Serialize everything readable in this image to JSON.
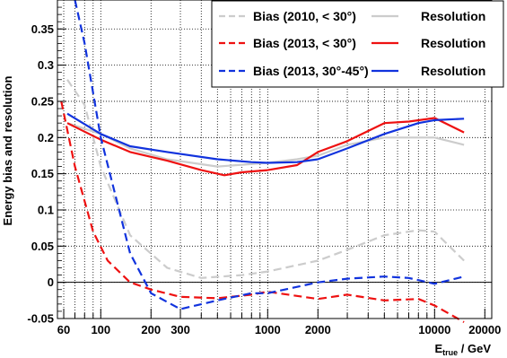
{
  "chart_data": {
    "type": "line",
    "xscale": "log",
    "xlim": [
      55,
      22000
    ],
    "ylim": [
      -0.05,
      0.39
    ],
    "grid": true,
    "legend_position": "top-right",
    "ylabel": "Energy bias and resolution",
    "xlabel_main": "E",
    "xlabel_sub": "true",
    "xlabel_unit": " / GeV",
    "x_ticks": [
      {
        "value": 60,
        "label": "60"
      },
      {
        "value": 100,
        "label": "100"
      },
      {
        "value": 200,
        "label": "200"
      },
      {
        "value": 300,
        "label": "300"
      },
      {
        "value": 1000,
        "label": "1000"
      },
      {
        "value": 2000,
        "label": "2000"
      },
      {
        "value": 10000,
        "label": "10000"
      },
      {
        "value": 20000,
        "label": "20000"
      }
    ],
    "x_minor_ticks": [
      70,
      80,
      90,
      400,
      500,
      600,
      700,
      800,
      900,
      3000,
      4000,
      5000,
      6000,
      7000,
      8000,
      9000
    ],
    "y_ticks": [
      {
        "value": -0.05,
        "label": "-0.05"
      },
      {
        "value": 0,
        "label": "0"
      },
      {
        "value": 0.05,
        "label": "0.05"
      },
      {
        "value": 0.1,
        "label": "0.1"
      },
      {
        "value": 0.15,
        "label": "0.15"
      },
      {
        "value": 0.2,
        "label": "0.2"
      },
      {
        "value": 0.25,
        "label": "0.25"
      },
      {
        "value": 0.3,
        "label": "0.3"
      },
      {
        "value": 0.35,
        "label": "0.35"
      }
    ],
    "series": [
      {
        "name": "Bias (2010, < 30°)",
        "color": "#cccccc",
        "dash": "dashed",
        "x": [
          63,
          80,
          100,
          150,
          250,
          400,
          700,
          1000,
          2000,
          3000,
          5000,
          8000,
          10000,
          15000
        ],
        "y": [
          0.28,
          0.245,
          0.16,
          0.065,
          0.02,
          0.006,
          0.01,
          0.015,
          0.03,
          0.045,
          0.065,
          0.072,
          0.07,
          0.03
        ]
      },
      {
        "name": "Resolution",
        "color": "#cccccc",
        "dash": "solid",
        "x": [
          63,
          100,
          150,
          250,
          500,
          1000,
          1500,
          2000,
          3000,
          5000,
          8000,
          10000,
          15000
        ],
        "y": [
          0.22,
          0.205,
          0.185,
          0.17,
          0.16,
          0.165,
          0.17,
          0.175,
          0.19,
          0.2,
          0.2,
          0.2,
          0.19
        ]
      },
      {
        "name": "Bias (2013, < 30°)",
        "color": "#ee1111",
        "dash": "dashed",
        "x": [
          58,
          70,
          90,
          110,
          150,
          200,
          300,
          500,
          800,
          1000,
          2000,
          3000,
          5000,
          8000,
          10000,
          15000
        ],
        "y": [
          0.25,
          0.16,
          0.07,
          0.03,
          0.0,
          -0.01,
          -0.02,
          -0.022,
          -0.017,
          -0.013,
          -0.023,
          -0.017,
          -0.025,
          -0.023,
          -0.032,
          -0.055
        ]
      },
      {
        "name": "Resolution",
        "color": "#ee1111",
        "dash": "solid",
        "x": [
          63,
          100,
          150,
          250,
          400,
          550,
          700,
          1000,
          1500,
          2000,
          3000,
          5000,
          7000,
          10000,
          15000
        ],
        "y": [
          0.22,
          0.197,
          0.18,
          0.168,
          0.155,
          0.148,
          0.152,
          0.155,
          0.162,
          0.18,
          0.195,
          0.22,
          0.222,
          0.227,
          0.207
        ]
      },
      {
        "name": "Bias (2013, 30°-45°)",
        "color": "#1133dd",
        "dash": "dashed",
        "x": [
          70,
          80,
          100,
          150,
          200,
          300,
          500,
          800,
          1000,
          2000,
          3000,
          5000,
          7000,
          10000,
          15000
        ],
        "y": [
          0.39,
          0.33,
          0.2,
          0.04,
          -0.015,
          -0.037,
          -0.025,
          -0.015,
          -0.015,
          0.0,
          0.005,
          0.008,
          0.006,
          -0.002,
          0.008
        ]
      },
      {
        "name": "Resolution",
        "color": "#1133dd",
        "dash": "solid",
        "x": [
          63,
          100,
          150,
          250,
          500,
          800,
          1000,
          1500,
          2000,
          3000,
          5000,
          8000,
          10000,
          15000
        ],
        "y": [
          0.233,
          0.205,
          0.188,
          0.18,
          0.17,
          0.166,
          0.165,
          0.166,
          0.17,
          0.185,
          0.205,
          0.22,
          0.224,
          0.226
        ]
      }
    ],
    "legend": [
      {
        "label": "Bias (2010, < 30°)",
        "color": "#cccccc",
        "dash": "dashed"
      },
      {
        "label": "Resolution",
        "color": "#cccccc",
        "dash": "solid"
      },
      {
        "label": "Bias (2013, < 30°)",
        "color": "#ee1111",
        "dash": "dashed"
      },
      {
        "label": "Resolution",
        "color": "#ee1111",
        "dash": "solid"
      },
      {
        "label": "Bias (2013, 30°-45°)",
        "color": "#1133dd",
        "dash": "dashed"
      },
      {
        "label": "Resolution",
        "color": "#1133dd",
        "dash": "solid"
      }
    ]
  }
}
